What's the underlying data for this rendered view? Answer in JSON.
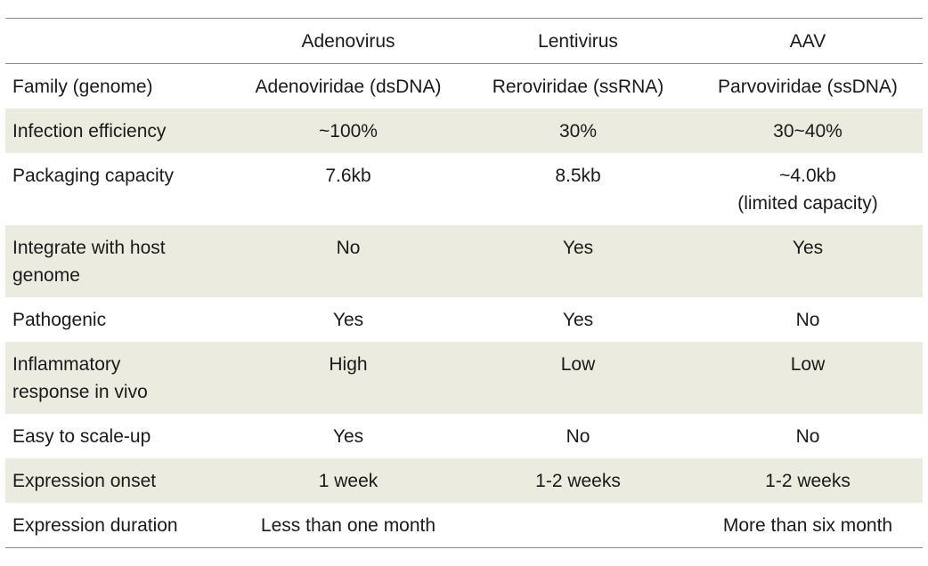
{
  "table": {
    "headers": [
      "",
      "Adenovirus",
      "Lentivirus",
      "AAV"
    ],
    "rows": [
      {
        "label": "Family (genome)",
        "values": [
          "Adenoviridae (dsDNA)",
          "Reroviridae (ssRNA)",
          "Parvoviridae (ssDNA)"
        ],
        "shaded": false
      },
      {
        "label": "Infection efficiency",
        "values": [
          "~100%",
          "30%",
          "30~40%"
        ],
        "shaded": true
      },
      {
        "label": "Packaging capacity",
        "values": [
          "7.6kb",
          "8.5kb",
          "~4.0kb\n(limited capacity)"
        ],
        "shaded": false
      },
      {
        "label": "Integrate with host\ngenome",
        "values": [
          "No",
          "Yes",
          "Yes"
        ],
        "shaded": true
      },
      {
        "label": "Pathogenic",
        "values": [
          "Yes",
          "Yes",
          "No"
        ],
        "shaded": false
      },
      {
        "label": "Inflammatory\nresponse in vivo",
        "values": [
          "High",
          "Low",
          "Low"
        ],
        "shaded": true
      },
      {
        "label": "Easy to scale-up",
        "values": [
          "Yes",
          "No",
          "No"
        ],
        "shaded": false
      },
      {
        "label": "Expression onset",
        "values": [
          "1 week",
          "1-2 weeks",
          "1-2 weeks"
        ],
        "shaded": true
      },
      {
        "label": "Expression duration",
        "values": [
          "Less than one month",
          "",
          "More than six month"
        ],
        "shaded": false
      }
    ]
  },
  "colors": {
    "shaded_row": "#ecebe0",
    "rule": "#8a8a8a",
    "text": "#1a1a1a"
  }
}
